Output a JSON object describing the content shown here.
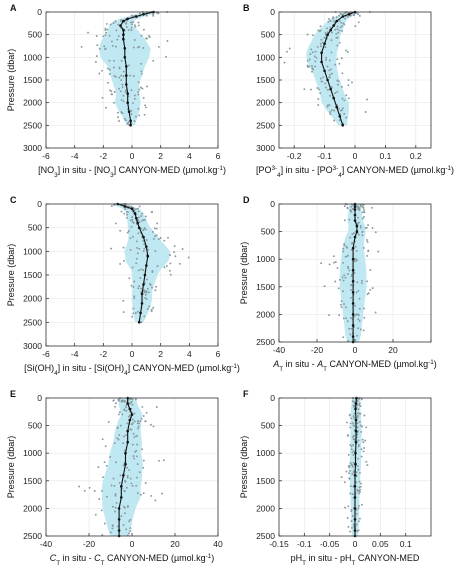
{
  "figure": {
    "panels_order": [
      "A",
      "B",
      "C",
      "D",
      "E",
      "F"
    ],
    "colors": {
      "band": "#bfe8f3",
      "points": "#8a9a9e",
      "mean": "#111111",
      "grid": "#e6e6e6",
      "axis": "#333333"
    }
  },
  "chart_data": [
    {
      "panel": "A",
      "type": "scatter",
      "ylabel": "Pressure (dbar)",
      "xlabel": {
        "parts": [
          [
            "[NO",
            ""
          ],
          [
            "3",
            "sub"
          ],
          [
            "] in situ - [NO",
            ""
          ],
          [
            "3",
            "sub"
          ],
          [
            "] CANYON-MED (µmol.kg",
            ""
          ],
          [
            "-1",
            "sup"
          ],
          [
            ")",
            ""
          ]
        ]
      },
      "xlim": [
        -6,
        6
      ],
      "ylim": [
        0,
        3000
      ],
      "yreversed": true,
      "xticks": [
        -6,
        -4,
        -2,
        0,
        2,
        4,
        6
      ],
      "xtick_labels": [
        "-6",
        "-4",
        "-2",
        "0",
        "2",
        "4",
        "6"
      ],
      "yticks": [
        0,
        500,
        1000,
        1500,
        2000,
        2500,
        3000
      ],
      "ytick_labels": [
        "0",
        "500",
        "1000",
        "1500",
        "2000",
        "2500",
        "3000"
      ],
      "grid": true,
      "mean_profile": {
        "depth": [
          0,
          50,
          100,
          150,
          200,
          300,
          400,
          500,
          600,
          800,
          1000,
          1200,
          1400,
          1600,
          1800,
          2000,
          2200,
          2400,
          2500
        ],
        "value": [
          1.5,
          0.8,
          0.3,
          -0.3,
          -0.6,
          -0.8,
          -0.6,
          -0.6,
          -0.6,
          -0.5,
          -0.5,
          -0.4,
          -0.4,
          -0.4,
          -0.3,
          -0.3,
          -0.2,
          -0.1,
          -0.1
        ]
      },
      "spread_width": {
        "depth": [
          0,
          200,
          400,
          600,
          800,
          1000,
          1200,
          1400,
          1600,
          1800,
          2000,
          2200,
          2400,
          2500
        ],
        "value": [
          0.5,
          0.7,
          1.0,
          1.5,
          1.8,
          1.7,
          1.3,
          1.1,
          0.9,
          0.8,
          0.9,
          0.7,
          0.4,
          0.3
        ]
      }
    },
    {
      "panel": "B",
      "type": "scatter",
      "ylabel": "",
      "xlabel": {
        "parts": [
          [
            "[PO",
            ""
          ],
          [
            "3-",
            "sup"
          ],
          [
            "4",
            "sub"
          ],
          [
            "] in situ - [PO",
            ""
          ],
          [
            "3-",
            "sup"
          ],
          [
            "4",
            "sub"
          ],
          [
            "] CANYON-MED (µmol.kg",
            ""
          ],
          [
            "-1",
            "sup"
          ],
          [
            ")",
            ""
          ]
        ]
      },
      "xlim": [
        -0.25,
        0.25
      ],
      "ylim": [
        0,
        3000
      ],
      "yreversed": true,
      "xticks": [
        -0.2,
        -0.1,
        0,
        0.1,
        0.2
      ],
      "xtick_labels": [
        "-0.2",
        "-0.1",
        "0",
        "0.1",
        "0.2"
      ],
      "yticks": [
        0,
        500,
        1000,
        1500,
        2000,
        2500,
        3000
      ],
      "ytick_labels": [
        "0",
        "500",
        "1000",
        "1500",
        "2000",
        "2500",
        "3000"
      ],
      "grid": true,
      "mean_profile": {
        "depth": [
          0,
          50,
          100,
          200,
          300,
          400,
          500,
          700,
          900,
          1100,
          1300,
          1500,
          1700,
          1900,
          2100,
          2300,
          2500
        ],
        "value": [
          0.0,
          -0.02,
          -0.04,
          -0.06,
          -0.07,
          -0.08,
          -0.09,
          -0.1,
          -0.11,
          -0.11,
          -0.1,
          -0.09,
          -0.08,
          -0.07,
          -0.06,
          -0.05,
          -0.04
        ]
      },
      "spread_width": {
        "depth": [
          0,
          200,
          400,
          600,
          800,
          1000,
          1200,
          1400,
          1600,
          1800,
          2000,
          2200,
          2400,
          2500
        ],
        "value": [
          0.02,
          0.03,
          0.04,
          0.045,
          0.05,
          0.05,
          0.045,
          0.04,
          0.04,
          0.04,
          0.045,
          0.035,
          0.02,
          0.015
        ]
      }
    },
    {
      "panel": "C",
      "type": "scatter",
      "ylabel": "Pressure (dbar)",
      "xlabel": {
        "parts": [
          [
            "[Si(OH)",
            ""
          ],
          [
            "4",
            "sub"
          ],
          [
            "] in situ - [Si(OH)",
            ""
          ],
          [
            "4",
            "sub"
          ],
          [
            "] CANYON-MED (µmol.kg",
            ""
          ],
          [
            "-1",
            "sup"
          ],
          [
            ")",
            ""
          ]
        ]
      },
      "xlim": [
        -6,
        6
      ],
      "ylim": [
        0,
        3000
      ],
      "yreversed": true,
      "xticks": [
        -6,
        -4,
        -2,
        0,
        2,
        4,
        6
      ],
      "xtick_labels": [
        "-6",
        "-4",
        "-2",
        "0",
        "2",
        "4",
        "6"
      ],
      "yticks": [
        0,
        500,
        1000,
        1500,
        2000,
        2500,
        3000
      ],
      "ytick_labels": [
        "0",
        "500",
        "1000",
        "1500",
        "2000",
        "2500",
        "3000"
      ],
      "grid": true,
      "mean_profile": {
        "depth": [
          0,
          50,
          100,
          200,
          300,
          400,
          500,
          700,
          900,
          1100,
          1300,
          1500,
          1700,
          1900,
          2100,
          2300,
          2500
        ],
        "value": [
          -1.0,
          -0.5,
          0.0,
          0.2,
          0.3,
          0.4,
          0.5,
          0.8,
          1.0,
          1.1,
          1.0,
          0.9,
          0.8,
          0.7,
          0.7,
          0.6,
          0.5
        ]
      },
      "spread_width": {
        "depth": [
          0,
          200,
          400,
          600,
          800,
          1000,
          1200,
          1400,
          1600,
          1800,
          2000,
          2200,
          2400,
          2500
        ],
        "value": [
          0.5,
          0.6,
          0.7,
          0.9,
          1.2,
          1.6,
          1.5,
          1.0,
          0.8,
          0.7,
          0.7,
          0.6,
          0.4,
          0.3
        ]
      }
    },
    {
      "panel": "D",
      "type": "scatter",
      "ylabel": "Pressure (dbar)",
      "xlabel": {
        "parts": [
          [
            "A",
            "it"
          ],
          [
            "T",
            "sub"
          ],
          [
            " in situ - ",
            ""
          ],
          [
            "A",
            "it"
          ],
          [
            "T",
            "sub"
          ],
          [
            " CANYON-MED (µmol.kg",
            ""
          ],
          [
            "-1",
            "sup"
          ],
          [
            ")",
            ""
          ]
        ]
      },
      "xlim": [
        -40,
        40
      ],
      "ylim": [
        0,
        2500
      ],
      "yreversed": true,
      "xticks": [
        -40,
        -20,
        0,
        20,
        40
      ],
      "xtick_labels": [
        "-40",
        "-20",
        "0",
        "20",
        ""
      ],
      "yticks": [
        0,
        500,
        1000,
        1500,
        2000,
        2500
      ],
      "ytick_labels": [
        "0",
        "500",
        "1000",
        "1500",
        "2000",
        "2500"
      ],
      "grid": true,
      "mean_profile": {
        "depth": [
          0,
          50,
          100,
          200,
          300,
          400,
          500,
          600,
          800,
          1000,
          1200,
          1400,
          1600,
          1800,
          2000,
          2200,
          2400,
          2500
        ],
        "value": [
          0,
          0,
          0,
          0,
          0,
          1,
          1,
          0,
          -1,
          -1,
          -1,
          -1,
          -1,
          -1,
          -1,
          -1,
          -1,
          -1
        ]
      },
      "spread_width": {
        "depth": [
          0,
          300,
          600,
          900,
          1200,
          1500,
          1800,
          2100,
          2400,
          2500
        ],
        "value": [
          3,
          4,
          5,
          6,
          7,
          7,
          6,
          5,
          4,
          3
        ]
      }
    },
    {
      "panel": "E",
      "type": "scatter",
      "ylabel": "Pressure (dbar)",
      "xlabel": {
        "parts": [
          [
            "C",
            "it"
          ],
          [
            "T",
            "sub"
          ],
          [
            " in situ - ",
            ""
          ],
          [
            "C",
            "it"
          ],
          [
            "T",
            "sub"
          ],
          [
            " CANYON-MED (µmol.kg",
            ""
          ],
          [
            "-1",
            "sup"
          ],
          [
            ")",
            ""
          ]
        ]
      },
      "xlim": [
        -40,
        40
      ],
      "ylim": [
        0,
        2500
      ],
      "yreversed": true,
      "xticks": [
        -40,
        -20,
        0,
        20,
        40
      ],
      "xtick_labels": [
        "-40",
        "-20",
        "0",
        "20",
        "40"
      ],
      "yticks": [
        0,
        500,
        1000,
        1500,
        2000,
        2500
      ],
      "ytick_labels": [
        "0",
        "500",
        "1000",
        "1500",
        "2000",
        "2500"
      ],
      "grid": true,
      "mean_profile": {
        "depth": [
          0,
          100,
          200,
          300,
          400,
          600,
          800,
          1000,
          1200,
          1400,
          1600,
          1800,
          2000,
          2200,
          2400,
          2500
        ],
        "value": [
          -2,
          -2,
          -1,
          0,
          -1,
          -2,
          -2,
          -3,
          -3,
          -4,
          -5,
          -5,
          -6,
          -6,
          -6,
          -6
        ]
      },
      "spread_width": {
        "depth": [
          0,
          300,
          600,
          900,
          1200,
          1500,
          1800,
          2100,
          2400,
          2500
        ],
        "value": [
          4,
          5,
          6,
          7,
          8,
          9,
          9,
          7,
          5,
          4
        ]
      }
    },
    {
      "panel": "F",
      "type": "scatter",
      "ylabel": "Pressure (dbar)",
      "xlabel": {
        "parts": [
          [
            "pH",
            ""
          ],
          [
            "T",
            "sub"
          ],
          [
            " in situ - pH",
            ""
          ],
          [
            "T",
            "sub"
          ],
          [
            " CANYON-MED",
            ""
          ]
        ]
      },
      "xlim": [
        -0.15,
        0.15
      ],
      "ylim": [
        0,
        2500
      ],
      "yreversed": true,
      "xticks": [
        -0.15,
        -0.1,
        -0.05,
        0,
        0.05,
        0.1
      ],
      "xtick_labels": [
        "-0.15",
        "-0.1",
        "-0.05",
        "0",
        "0.05",
        "0.1"
      ],
      "yticks": [
        0,
        500,
        1000,
        1500,
        2000,
        2500
      ],
      "ytick_labels": [
        "0",
        "500",
        "1000",
        "1500",
        "2000",
        "2500"
      ],
      "grid": true,
      "mean_profile": {
        "depth": [
          0,
          100,
          200,
          400,
          600,
          800,
          1000,
          1200,
          1400,
          1600,
          1800,
          2000,
          2200,
          2400,
          2500
        ],
        "value": [
          0.003,
          0.002,
          0.001,
          0.002,
          0.002,
          0.002,
          0.001,
          0.001,
          0.0,
          0.0,
          0.0,
          0.0,
          0.0,
          0.0,
          0.0
        ]
      },
      "spread_width": {
        "depth": [
          0,
          300,
          600,
          900,
          1200,
          1500,
          1800,
          2100,
          2400,
          2500
        ],
        "value": [
          0.008,
          0.01,
          0.011,
          0.011,
          0.011,
          0.01,
          0.009,
          0.008,
          0.007,
          0.006
        ]
      }
    }
  ]
}
